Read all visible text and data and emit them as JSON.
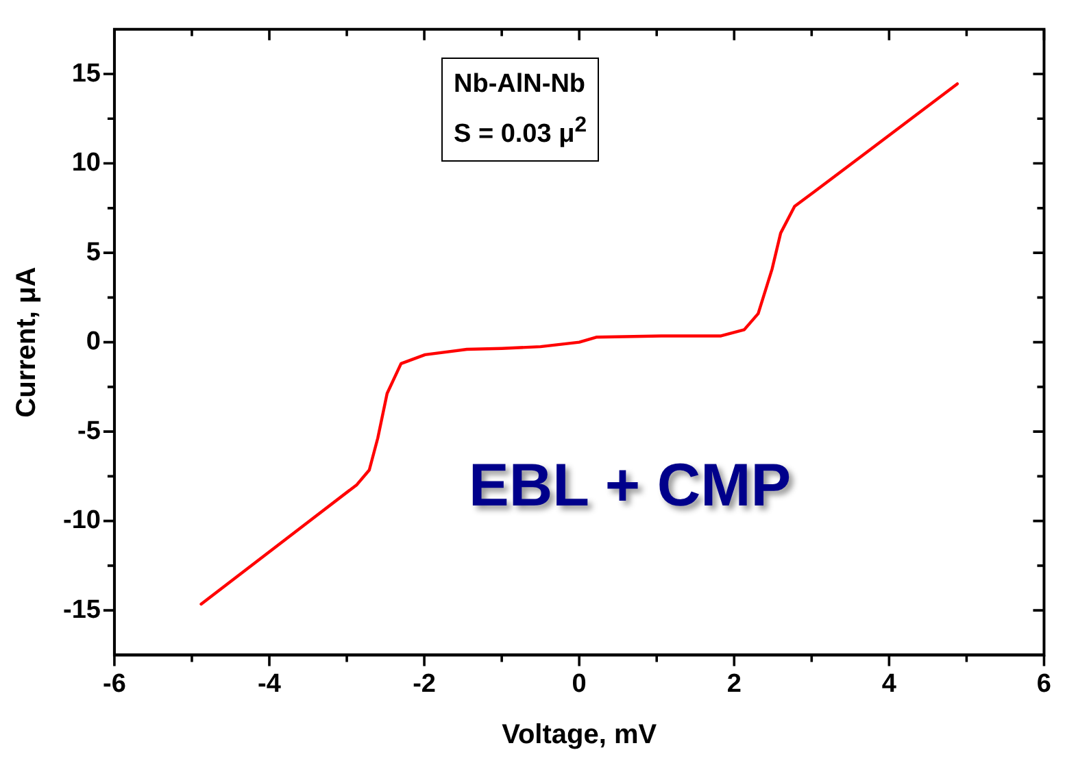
{
  "chart_data": {
    "type": "line",
    "xlabel": "Voltage, mV",
    "ylabel": "Current, μA",
    "annotations": [
      "Nb-AlN-Nb",
      "S = 0.03 μ$^{2}$",
      "EBL + CMP"
    ],
    "xlim": [
      -6,
      6
    ],
    "ylim": [
      -17.5,
      17.5
    ],
    "xticks": [
      -6,
      {
        "value": -5,
        "label": null
      },
      -4,
      {
        "value": -3,
        "label": null
      },
      -2,
      {
        "value": -1,
        "label": null
      },
      0,
      {
        "value": 1,
        "label": null
      },
      2,
      {
        "value": 3,
        "label": null
      },
      4,
      {
        "value": 5,
        "label": null
      },
      6
    ],
    "yticks": [
      -15,
      {
        "value": -12.5,
        "label": null
      },
      -10,
      {
        "value": -7.5,
        "label": null
      },
      -5,
      {
        "value": -2.5,
        "label": null
      },
      0,
      {
        "value": 2.5,
        "label": null
      },
      5,
      {
        "value": 7.5,
        "label": null
      },
      10,
      {
        "value": 12.5,
        "label": null
      },
      15
    ],
    "grid": false,
    "legend": false,
    "marker": "none",
    "line_style": "solid",
    "series": [
      {
        "color": "#ff0000",
        "x": [
          -4.88,
          -2.87,
          -2.71,
          -2.6,
          -2.48,
          -2.3,
          -1.99,
          -1.45,
          -1.0,
          -0.5,
          0,
          0.22,
          1.06,
          1.83,
          2.13,
          2.31,
          2.49,
          2.6,
          2.78,
          3.03,
          4.88
        ],
        "values": [
          -14.65,
          -7.97,
          -7.15,
          -5.36,
          -2.87,
          -1.2,
          -0.7,
          -0.4,
          -0.35,
          -0.25,
          0,
          0.28,
          0.35,
          0.35,
          0.7,
          1.6,
          4.1,
          6.1,
          7.6,
          8.4,
          14.45
        ]
      }
    ]
  }
}
